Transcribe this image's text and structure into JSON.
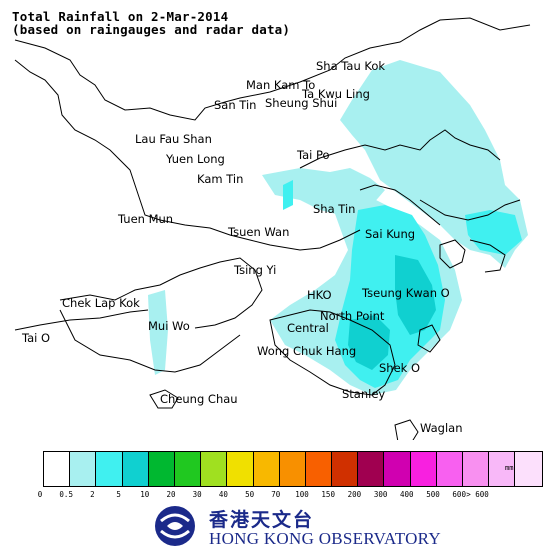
{
  "title_line1": "Total Rainfall on 2-Mar-2014",
  "title_line2": "(based on raingauges and radar data)",
  "places": {
    "sha_tau_kok": "Sha Tau Kok",
    "man_kam_to": "Man Kam To",
    "ta_kwu_ling": "Ta Kwu Ling",
    "san_tin": "San Tin",
    "sheung_shui": "Sheung Shui",
    "lau_fau_shan": "Lau Fau Shan",
    "yuen_long": "Yuen Long",
    "kam_tin": "Kam Tin",
    "tai_po": "Tai Po",
    "sha_tin": "Sha Tin",
    "tuen_mun": "Tuen Mun",
    "tsuen_wan": "Tsuen Wan",
    "sai_kung": "Sai Kung",
    "tsing_yi": "Tsing Yi",
    "chek_lap_kok": "Chek Lap Kok",
    "hko": "HKO",
    "tseung_kwan_o": "Tseung Kwan O",
    "mui_wo": "Mui Wo",
    "north_point": "North Point",
    "central": "Central",
    "tai_o": "Tai O",
    "wong_chuk_hang": "Wong Chuk Hang",
    "shek_o": "Shek O",
    "cheung_chau": "Cheung Chau",
    "stanley": "Stanley",
    "waglan": "Waglan"
  },
  "legend": {
    "unit": "mm",
    "colors": [
      "#ffffff",
      "#a8f0f0",
      "#40f0f0",
      "#10d0d0",
      "#00b830",
      "#20c820",
      "#a0e020",
      "#f0e000",
      "#f8b800",
      "#f89000",
      "#f86000",
      "#d03000",
      "#a00050",
      "#d000b0",
      "#f820e0",
      "#f860f0",
      "#f890f0",
      "#f8b8f8",
      "#fce0fc"
    ],
    "ticks": [
      "0",
      "0.5",
      "2",
      "5",
      "10",
      "20",
      "30",
      "40",
      "50",
      "70",
      "100",
      "150",
      "200",
      "300",
      "400",
      "500",
      "600",
      "> 600"
    ]
  },
  "logo": {
    "chinese": "香港天文台",
    "english": "HONG KONG OBSERVATORY"
  }
}
